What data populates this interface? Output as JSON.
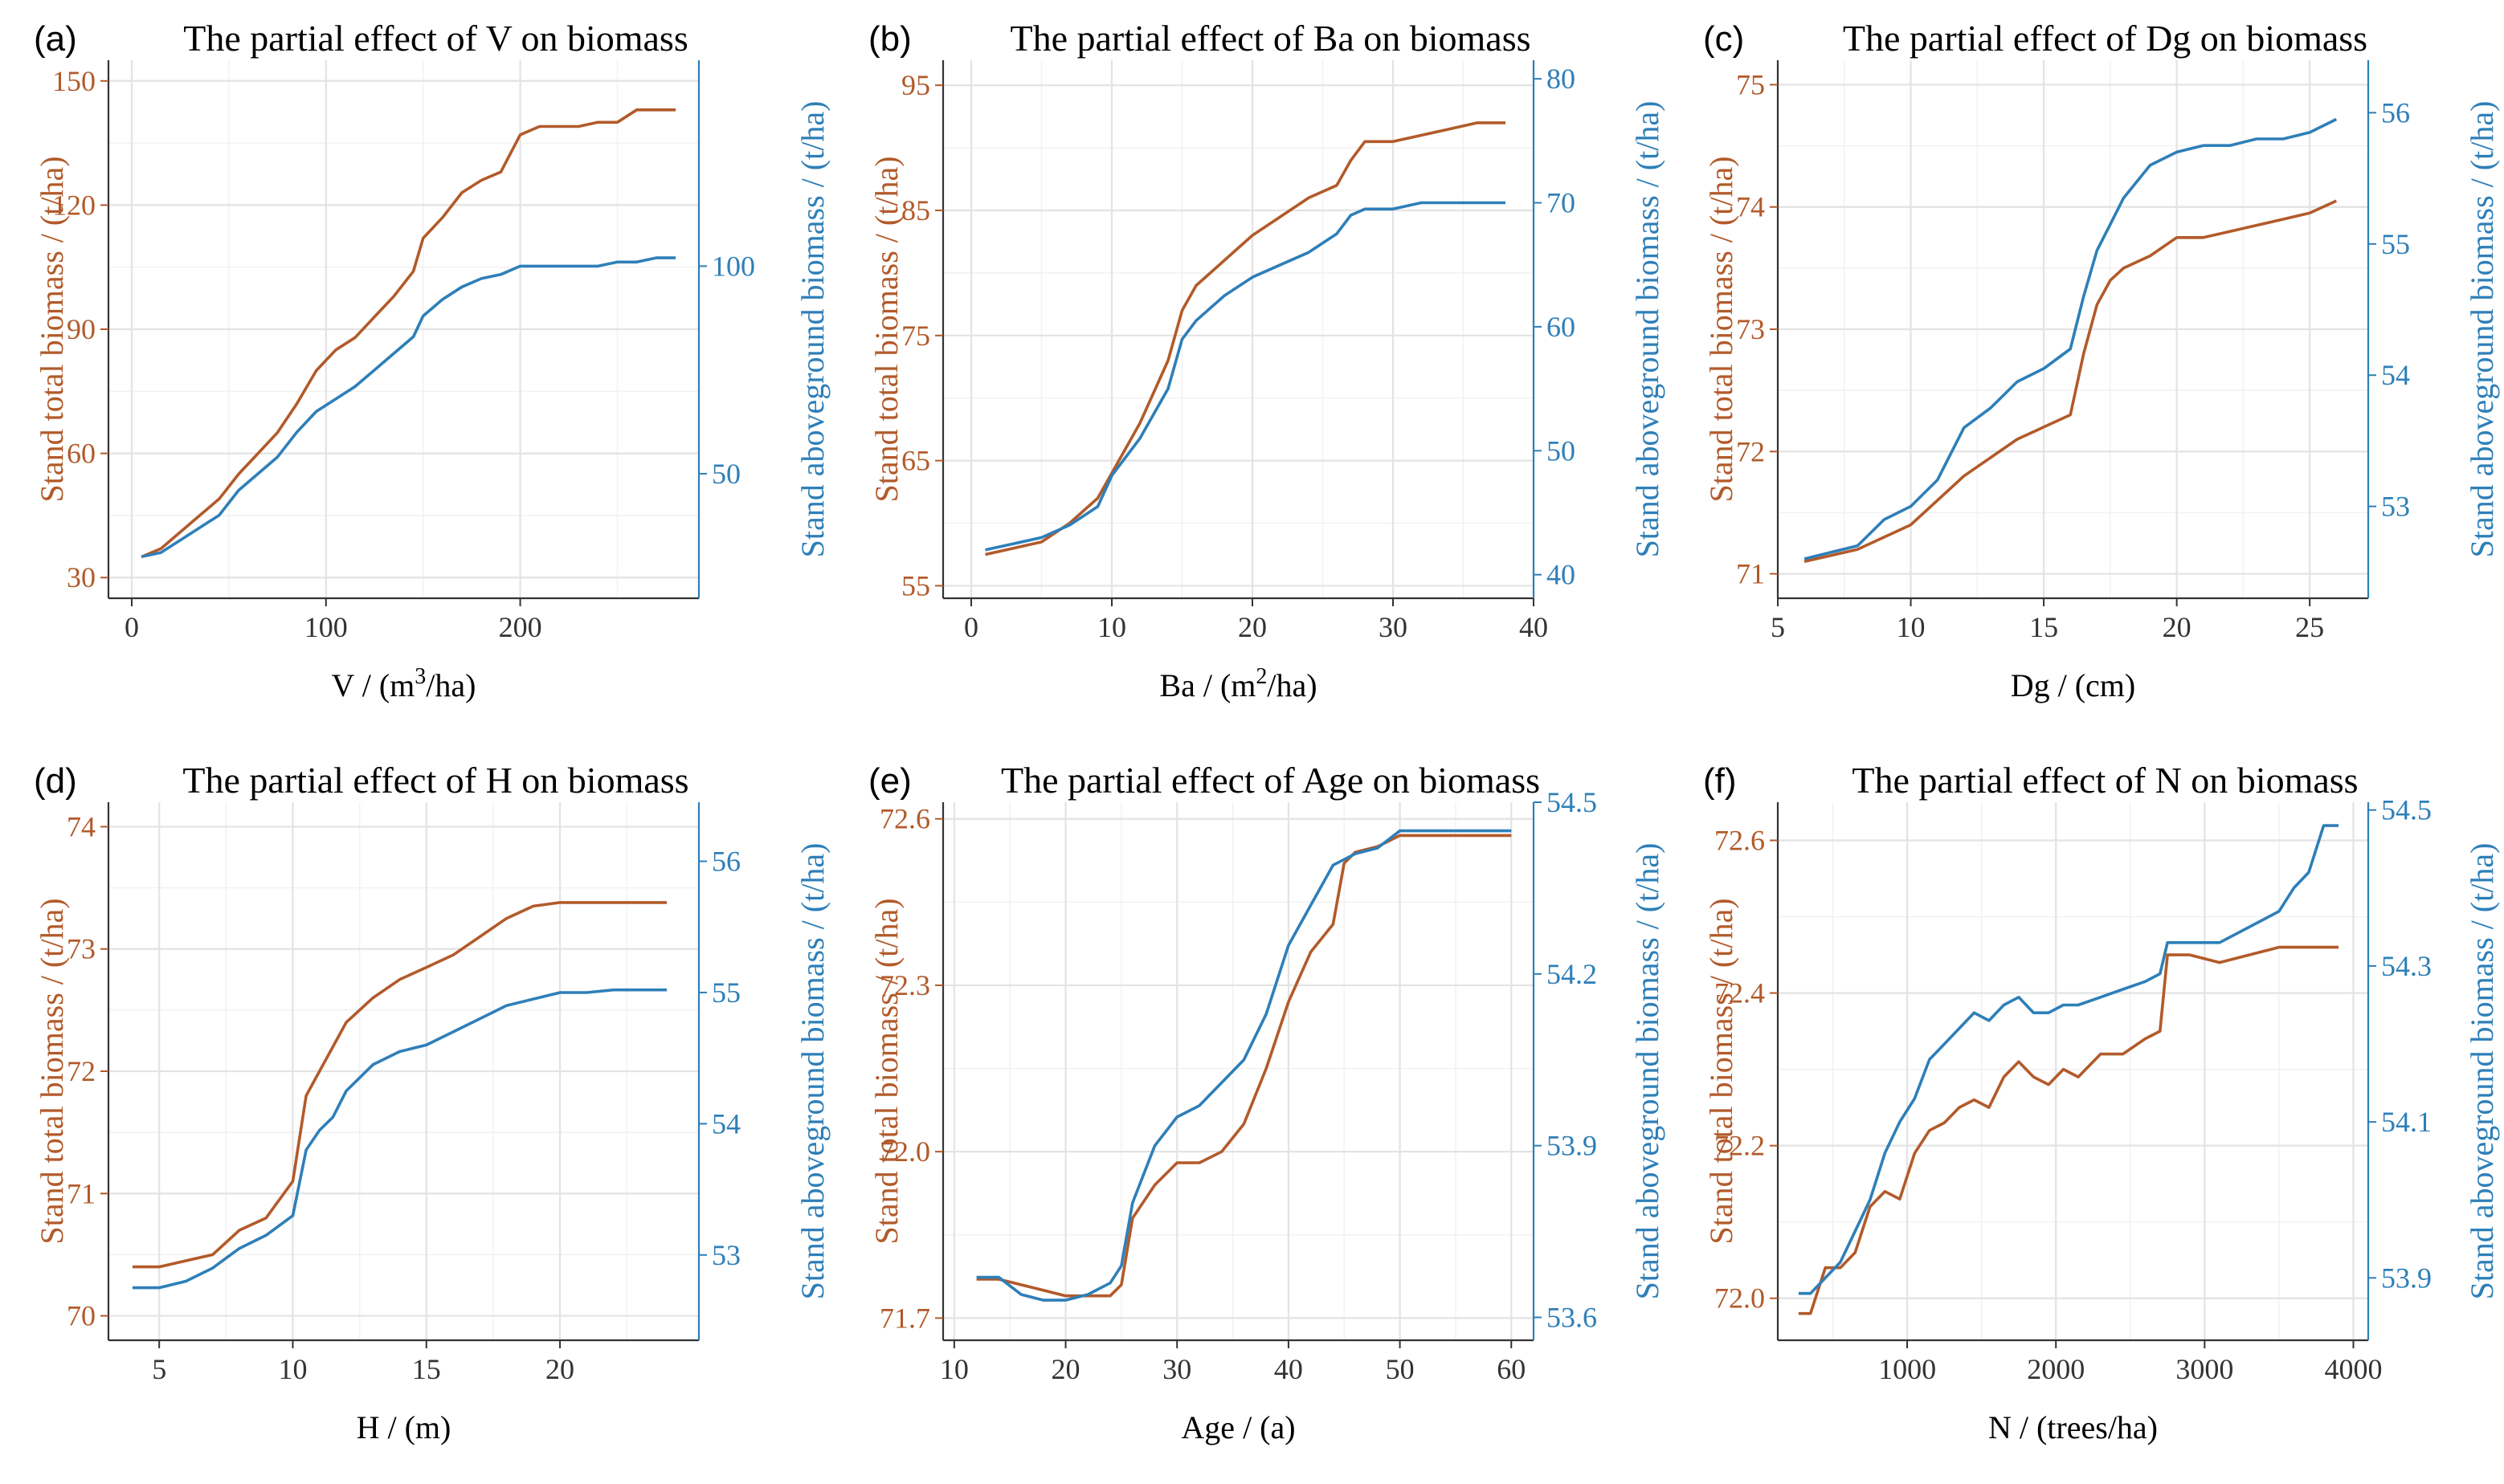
{
  "colors": {
    "total": "#b25a2a",
    "aboveground": "#2e7fb8",
    "grid": "#e3e3e3",
    "axis": "#333333"
  },
  "chart_data": [
    {
      "type": "line",
      "letter": "(a)",
      "title": "The partial effect of V on biomass",
      "xlabel": "V / (m3/ha)",
      "xlabel_parts": {
        "pre": "V / (m",
        "sup": "3",
        "post": "/ha)"
      },
      "ylabel_left": "Stand total biomass / (t/ha)",
      "ylabel_right": "Stand aboveground biomass / (t/ha)",
      "xlim": [
        -12,
        292
      ],
      "ylim_left": [
        25,
        155
      ],
      "ylim_right": [
        20,
        149.6
      ],
      "xticks": [
        0,
        100,
        200
      ],
      "xtick_labels": [
        "0",
        "100",
        "200"
      ],
      "yticks_left": [
        30,
        60,
        90,
        120,
        150
      ],
      "ytick_labels_left": [
        "30",
        "60",
        "90",
        "120",
        "150"
      ],
      "yticks_right": [
        50,
        100
      ],
      "ytick_labels_right": [
        "50",
        "100"
      ],
      "series": [
        {
          "name": "Stand total biomass",
          "axis": "left",
          "x": [
            5,
            15,
            25,
            35,
            45,
            55,
            65,
            75,
            85,
            95,
            105,
            115,
            125,
            135,
            145,
            150,
            160,
            170,
            180,
            190,
            200,
            210,
            220,
            230,
            240,
            250,
            260,
            270,
            280
          ],
          "y": [
            35,
            37,
            41,
            45,
            49,
            55,
            60,
            65,
            72,
            80,
            85,
            88,
            93,
            98,
            104,
            112,
            117,
            123,
            126,
            128,
            137,
            139,
            139,
            139,
            140,
            140,
            143,
            143,
            143
          ]
        },
        {
          "name": "Stand aboveground biomass",
          "axis": "right",
          "x": [
            5,
            15,
            25,
            35,
            45,
            55,
            65,
            75,
            85,
            95,
            105,
            115,
            125,
            135,
            145,
            150,
            160,
            170,
            180,
            190,
            200,
            210,
            220,
            230,
            240,
            250,
            260,
            270,
            280
          ],
          "y": [
            30,
            31,
            34,
            37,
            40,
            46,
            50,
            54,
            60,
            65,
            68,
            71,
            75,
            79,
            83,
            88,
            92,
            95,
            97,
            98,
            100,
            100,
            100,
            100,
            100,
            101,
            101,
            102,
            102
          ]
        }
      ]
    },
    {
      "type": "line",
      "letter": "(b)",
      "title": "The partial effect of Ba on biomass",
      "xlabel": "Ba / (m2/ha)",
      "xlabel_parts": {
        "pre": "Ba / (m",
        "sup": "2",
        "post": "/ha)"
      },
      "ylabel_left": "Stand total biomass / (t/ha)",
      "ylabel_right": "Stand aboveground biomass / (t/ha)",
      "xlim": [
        -2,
        40
      ],
      "ylim_left": [
        54,
        97
      ],
      "ylim_right": [
        38.1,
        81.5
      ],
      "xticks": [
        0,
        10,
        20,
        30,
        40
      ],
      "xtick_labels": [
        "0",
        "10",
        "20",
        "30",
        "40"
      ],
      "yticks_left": [
        55,
        65,
        75,
        85,
        95
      ],
      "ytick_labels_left": [
        "55",
        "65",
        "75",
        "85",
        "95"
      ],
      "yticks_right": [
        40,
        50,
        60,
        70,
        80
      ],
      "ytick_labels_right": [
        "40",
        "50",
        "60",
        "70",
        "80"
      ],
      "series": [
        {
          "name": "Stand total biomass",
          "axis": "left",
          "x": [
            1,
            3,
            5,
            7,
            9,
            10,
            12,
            14,
            15,
            16,
            18,
            20,
            22,
            24,
            26,
            27,
            28,
            30,
            32,
            34,
            36,
            38
          ],
          "y": [
            57.5,
            58,
            58.5,
            60,
            62,
            64,
            68,
            73,
            77,
            79,
            81,
            83,
            84.5,
            86,
            87,
            89,
            90.5,
            90.5,
            91,
            91.5,
            92,
            92
          ]
        },
        {
          "name": "Stand aboveground biomass",
          "axis": "right",
          "x": [
            1,
            3,
            5,
            7,
            9,
            10,
            12,
            14,
            15,
            16,
            18,
            20,
            22,
            24,
            26,
            27,
            28,
            30,
            32,
            34,
            36,
            38
          ],
          "y": [
            42,
            42.5,
            43,
            44,
            45.5,
            48,
            51,
            55,
            59,
            60.5,
            62.5,
            64,
            65,
            66,
            67.5,
            69,
            69.5,
            69.5,
            70,
            70,
            70,
            70
          ]
        }
      ]
    },
    {
      "type": "line",
      "letter": "(c)",
      "title": "The partial effect of Dg on biomass",
      "xlabel": "Dg / (cm)",
      "ylabel_left": "Stand total biomass / (t/ha)",
      "ylabel_right": "Stand aboveground biomass / (t/ha)",
      "xlim": [
        5,
        27.2
      ],
      "ylim_left": [
        70.8,
        75.2
      ],
      "ylim_right": [
        52.3,
        56.4
      ],
      "xticks": [
        5,
        10,
        15,
        20,
        25
      ],
      "xtick_labels": [
        "5",
        "10",
        "15",
        "20",
        "25"
      ],
      "yticks_left": [
        71,
        72,
        73,
        74,
        75
      ],
      "ytick_labels_left": [
        "71",
        "72",
        "73",
        "74",
        "75"
      ],
      "yticks_right": [
        53,
        54,
        55,
        56
      ],
      "ytick_labels_right": [
        "53",
        "54",
        "55",
        "56"
      ],
      "series": [
        {
          "name": "Stand total biomass",
          "axis": "left",
          "x": [
            6,
            7,
            8,
            9,
            10,
            11,
            12,
            13,
            14,
            15,
            16,
            16.5,
            17,
            17.5,
            18,
            19,
            20,
            21,
            22,
            23,
            24,
            25,
            26
          ],
          "y": [
            71.1,
            71.15,
            71.2,
            71.3,
            71.4,
            71.6,
            71.8,
            71.95,
            72.1,
            72.2,
            72.3,
            72.8,
            73.2,
            73.4,
            73.5,
            73.6,
            73.75,
            73.75,
            73.8,
            73.85,
            73.9,
            73.95,
            74.05
          ]
        },
        {
          "name": "Stand aboveground biomass",
          "axis": "right",
          "x": [
            6,
            7,
            8,
            9,
            10,
            11,
            12,
            13,
            14,
            15,
            16,
            16.5,
            17,
            17.5,
            18,
            19,
            20,
            21,
            22,
            23,
            24,
            25,
            26
          ],
          "y": [
            52.6,
            52.65,
            52.7,
            52.9,
            53.0,
            53.2,
            53.6,
            53.75,
            53.95,
            54.05,
            54.2,
            54.6,
            54.95,
            55.15,
            55.35,
            55.6,
            55.7,
            55.75,
            55.75,
            55.8,
            55.8,
            55.85,
            55.95
          ]
        }
      ]
    },
    {
      "type": "line",
      "letter": "(d)",
      "title": "The partial effect of H on biomass",
      "xlabel": "H / (m)",
      "ylabel_left": "Stand total biomass / (t/ha)",
      "ylabel_right": "Stand aboveground biomass / (t/ha)",
      "xlim": [
        3.1,
        25.2
      ],
      "ylim_left": [
        69.8,
        74.2
      ],
      "ylim_right": [
        52.35,
        56.45
      ],
      "xticks": [
        5,
        10,
        15,
        20
      ],
      "xtick_labels": [
        "5",
        "10",
        "15",
        "20"
      ],
      "yticks_left": [
        70,
        71,
        72,
        73,
        74
      ],
      "ytick_labels_left": [
        "70",
        "71",
        "72",
        "73",
        "74"
      ],
      "yticks_right": [
        53,
        54,
        55,
        56
      ],
      "ytick_labels_right": [
        "53",
        "54",
        "55",
        "56"
      ],
      "series": [
        {
          "name": "Stand total biomass",
          "axis": "left",
          "x": [
            4,
            5,
            6,
            7,
            8,
            9,
            10,
            10.5,
            11,
            11.5,
            12,
            13,
            14,
            15,
            16,
            17,
            18,
            19,
            20,
            21,
            22,
            23,
            24
          ],
          "y": [
            70.4,
            70.4,
            70.45,
            70.5,
            70.7,
            70.8,
            71.1,
            71.8,
            72.0,
            72.2,
            72.4,
            72.6,
            72.75,
            72.85,
            72.95,
            73.1,
            73.25,
            73.35,
            73.38,
            73.38,
            73.38,
            73.38,
            73.38
          ]
        },
        {
          "name": "Stand aboveground biomass",
          "axis": "right",
          "x": [
            4,
            5,
            6,
            7,
            8,
            9,
            10,
            10.5,
            11,
            11.5,
            12,
            13,
            14,
            15,
            16,
            17,
            18,
            19,
            20,
            21,
            22,
            23,
            24
          ],
          "y": [
            52.75,
            52.75,
            52.8,
            52.9,
            53.05,
            53.15,
            53.3,
            53.8,
            53.95,
            54.05,
            54.25,
            54.45,
            54.55,
            54.6,
            54.7,
            54.8,
            54.9,
            54.95,
            55.0,
            55.0,
            55.02,
            55.02,
            55.02
          ]
        }
      ]
    },
    {
      "type": "line",
      "letter": "(e)",
      "title": "The partial effect of Age on biomass",
      "xlabel": "Age / (a)",
      "ylabel_left": "Stand total biomass / (t/ha)",
      "ylabel_right": "Stand aboveground biomass / (t/ha)",
      "xlim": [
        9,
        62
      ],
      "ylim_left": [
        71.66,
        72.63
      ],
      "ylim_right": [
        53.56,
        54.5
      ],
      "xticks": [
        10,
        20,
        30,
        40,
        50,
        60
      ],
      "xtick_labels": [
        "10",
        "20",
        "30",
        "40",
        "50",
        "60"
      ],
      "yticks_left": [
        71.7,
        72.0,
        72.3,
        72.6
      ],
      "ytick_labels_left": [
        "71.7",
        "72.0",
        "72.3",
        "72.6"
      ],
      "yticks_right": [
        53.6,
        53.9,
        54.2,
        54.5
      ],
      "ytick_labels_right": [
        "53.6",
        "53.9",
        "54.2",
        "54.5"
      ],
      "series": [
        {
          "name": "Stand total biomass",
          "axis": "left",
          "x": [
            12,
            14,
            16,
            18,
            20,
            22,
            24,
            25,
            26,
            28,
            30,
            32,
            34,
            36,
            38,
            40,
            42,
            44,
            45,
            46,
            48,
            50,
            52,
            55,
            58,
            60
          ],
          "y": [
            71.77,
            71.77,
            71.76,
            71.75,
            71.74,
            71.74,
            71.74,
            71.76,
            71.88,
            71.94,
            71.98,
            71.98,
            72.0,
            72.05,
            72.15,
            72.27,
            72.36,
            72.41,
            72.52,
            72.54,
            72.55,
            72.57,
            72.57,
            72.57,
            72.57,
            72.57
          ]
        },
        {
          "name": "Stand aboveground biomass",
          "axis": "right",
          "x": [
            12,
            14,
            16,
            18,
            20,
            22,
            24,
            25,
            26,
            28,
            30,
            32,
            34,
            36,
            38,
            40,
            42,
            44,
            45,
            46,
            48,
            50,
            52,
            55,
            58,
            60
          ],
          "y": [
            53.67,
            53.67,
            53.64,
            53.63,
            53.63,
            53.64,
            53.66,
            53.69,
            53.8,
            53.9,
            53.95,
            53.97,
            54.01,
            54.05,
            54.13,
            54.25,
            54.32,
            54.39,
            54.4,
            54.41,
            54.42,
            54.45,
            54.45,
            54.45,
            54.45,
            54.45
          ]
        }
      ]
    },
    {
      "type": "line",
      "letter": "(f)",
      "title": "The partial effect of N on biomass",
      "xlabel": "N / (trees/ha)",
      "ylabel_left": "Stand total biomass / (t/ha)",
      "ylabel_right": "Stand aboveground biomass / (t/ha)",
      "xlim": [
        130,
        4100
      ],
      "ylim_left": [
        71.945,
        72.65
      ],
      "ylim_right": [
        53.82,
        54.51
      ],
      "xticks": [
        1000,
        2000,
        3000,
        4000
      ],
      "xtick_labels": [
        "1000",
        "2000",
        "3000",
        "4000"
      ],
      "yticks_left": [
        72.0,
        72.2,
        72.4,
        72.6
      ],
      "ytick_labels_left": [
        "72.0",
        "72.2",
        "72.4",
        "72.6"
      ],
      "yticks_right": [
        53.9,
        54.1,
        54.3,
        54.5
      ],
      "ytick_labels_right": [
        "53.9",
        "54.1",
        "54.3",
        "54.5"
      ],
      "series": [
        {
          "name": "Stand total biomass",
          "axis": "left",
          "x": [
            270,
            350,
            450,
            550,
            650,
            750,
            850,
            950,
            1050,
            1150,
            1250,
            1350,
            1450,
            1550,
            1650,
            1750,
            1850,
            1950,
            2050,
            2150,
            2300,
            2450,
            2600,
            2700,
            2750,
            2900,
            3100,
            3300,
            3500,
            3700,
            3900
          ],
          "y": [
            71.98,
            71.98,
            72.04,
            72.04,
            72.06,
            72.12,
            72.14,
            72.13,
            72.19,
            72.22,
            72.23,
            72.25,
            72.26,
            72.25,
            72.29,
            72.31,
            72.29,
            72.28,
            72.3,
            72.29,
            72.32,
            72.32,
            72.34,
            72.35,
            72.45,
            72.45,
            72.44,
            72.45,
            72.46,
            72.46,
            72.46
          ]
        },
        {
          "name": "Stand aboveground biomass",
          "axis": "right",
          "x": [
            270,
            350,
            450,
            550,
            650,
            750,
            850,
            950,
            1050,
            1150,
            1250,
            1350,
            1450,
            1550,
            1650,
            1750,
            1850,
            1950,
            2050,
            2150,
            2300,
            2450,
            2600,
            2700,
            2750,
            2900,
            3100,
            3300,
            3500,
            3600,
            3700,
            3750,
            3800,
            3900
          ],
          "y": [
            53.88,
            53.88,
            53.9,
            53.92,
            53.96,
            54.0,
            54.06,
            54.1,
            54.13,
            54.18,
            54.2,
            54.22,
            54.24,
            54.23,
            54.25,
            54.26,
            54.24,
            54.24,
            54.25,
            54.25,
            54.26,
            54.27,
            54.28,
            54.29,
            54.33,
            54.33,
            54.33,
            54.35,
            54.37,
            54.4,
            54.42,
            54.45,
            54.48,
            54.48
          ]
        }
      ]
    }
  ]
}
